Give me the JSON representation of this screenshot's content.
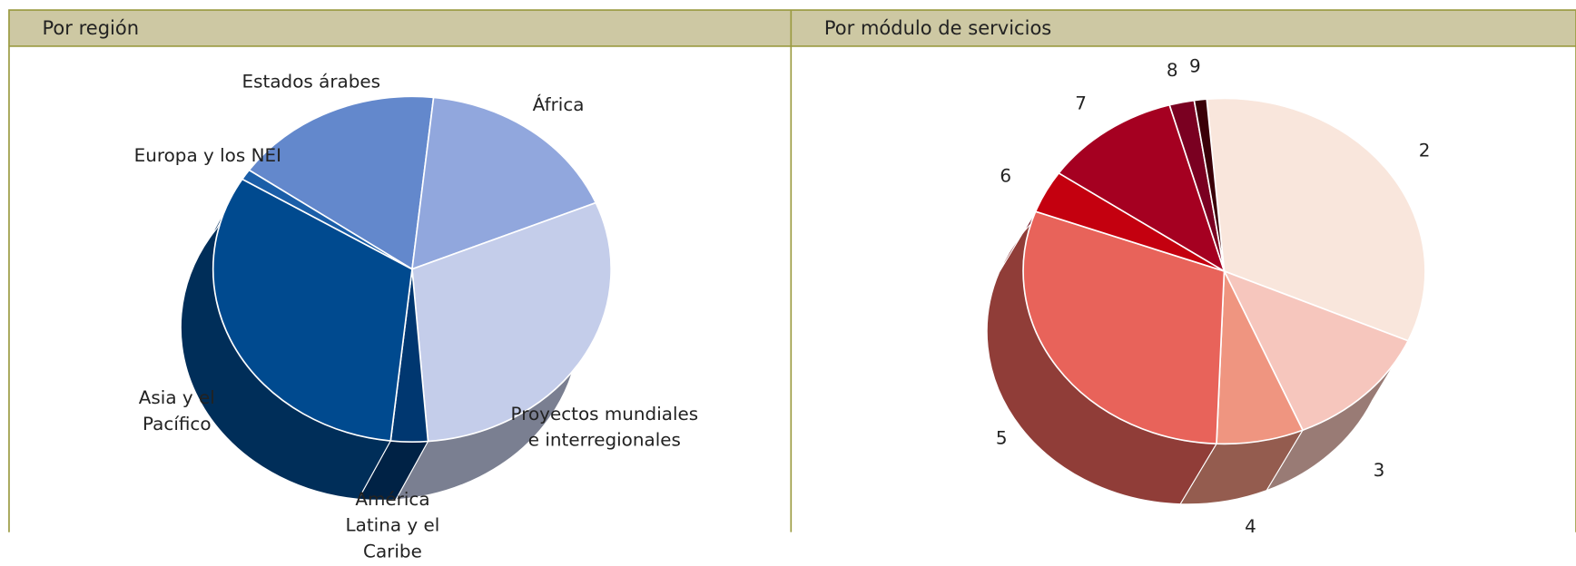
{
  "chart_data": [
    {
      "type": "pie3d",
      "title": "Por región",
      "categories": [
        "Estados árabes",
        "África",
        "Proyectos mundiales e interregionales",
        "América Latina y el Caribe",
        "Asia y el Pacífico",
        "Europa y los NEI"
      ],
      "values": [
        17,
        17,
        30,
        3,
        32,
        1
      ],
      "colors": [
        "#6388cc",
        "#91a7dd",
        "#c4cdea",
        "#003770",
        "#004a8f",
        "#1a5ea8"
      ]
    },
    {
      "type": "pie3d",
      "title": "Por módulo de servicios",
      "categories": [
        "2",
        "3",
        "4",
        "5",
        "6",
        "7",
        "8",
        "9"
      ],
      "values": [
        33,
        12,
        7,
        30,
        4,
        11,
        2,
        1
      ],
      "colors": [
        "#f9e6dc",
        "#f6c6bd",
        "#ef9580",
        "#e8635a",
        "#c4000f",
        "#a50021",
        "#7a0021",
        "#3a0008"
      ]
    }
  ]
}
